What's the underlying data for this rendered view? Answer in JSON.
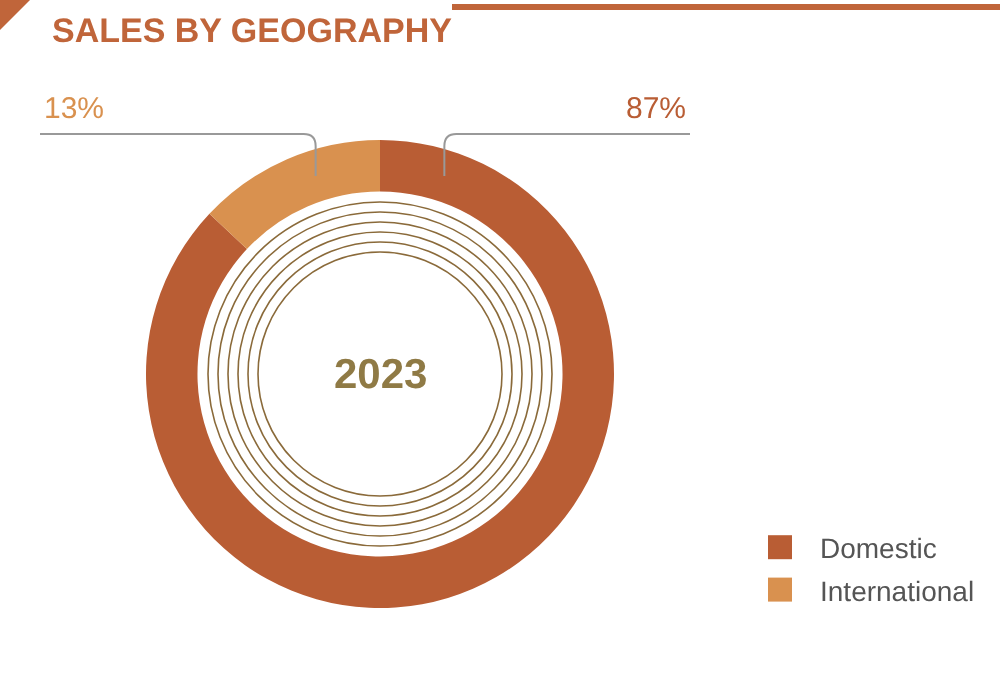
{
  "chart_data": {
    "type": "donut",
    "title": "SALES BY GEOGRAPHY",
    "categories": [
      "Domestic",
      "International"
    ],
    "values": [
      87,
      13
    ],
    "colors": [
      "#b95d34",
      "#d9914f"
    ],
    "value_labels": [
      "87%",
      "13%"
    ],
    "annotations": [
      "2023"
    ],
    "legend": "bottom right"
  }
}
